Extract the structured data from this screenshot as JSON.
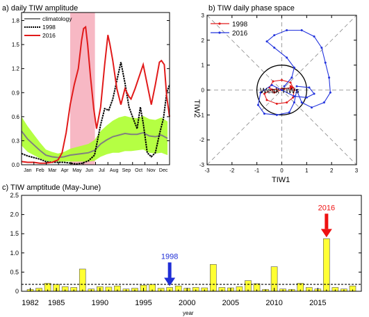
{
  "chart_data": [
    {
      "panel": "a",
      "type": "line",
      "title": "a) daily TIW amplitude",
      "x_tick_labels": [
        "Jan",
        "Feb",
        "Mar",
        "Apr",
        "May",
        "Jun",
        "Jul",
        "Aug",
        "Sep",
        "Oct",
        "Nov",
        "Dec"
      ],
      "y_tick_labels": [
        "0.0",
        "0.3",
        "0.6",
        "0.9",
        "1.2",
        "1.5",
        "1.8"
      ],
      "ylim": [
        0,
        1.9
      ],
      "xlim": [
        0,
        365
      ],
      "highlight_span": [
        120,
        181
      ],
      "legend_placement": "top-left",
      "series": [
        {
          "name": "climatology",
          "color": "#808080",
          "spread_color": "#adff2f",
          "x": [
            0,
            15,
            30,
            45,
            60,
            75,
            90,
            105,
            120,
            135,
            150,
            165,
            180,
            195,
            210,
            225,
            240,
            255,
            270,
            285,
            300,
            315,
            330,
            345,
            360
          ],
          "values": [
            0.42,
            0.32,
            0.25,
            0.18,
            0.12,
            0.1,
            0.09,
            0.1,
            0.12,
            0.13,
            0.14,
            0.15,
            0.18,
            0.26,
            0.31,
            0.35,
            0.37,
            0.39,
            0.38,
            0.38,
            0.4,
            0.36,
            0.35,
            0.37,
            0.33
          ],
          "spread": [
            0.18,
            0.16,
            0.13,
            0.1,
            0.07,
            0.06,
            0.05,
            0.06,
            0.08,
            0.09,
            0.1,
            0.11,
            0.13,
            0.16,
            0.18,
            0.2,
            0.22,
            0.22,
            0.21,
            0.2,
            0.21,
            0.21,
            0.21,
            0.22,
            0.21
          ]
        },
        {
          "name": "1998",
          "color": "#000000",
          "x": [
            0,
            15,
            30,
            45,
            60,
            75,
            90,
            105,
            120,
            135,
            150,
            165,
            180,
            195,
            205,
            215,
            225,
            235,
            245,
            255,
            265,
            275,
            285,
            293,
            300,
            310,
            320,
            330,
            340,
            350,
            358,
            365
          ],
          "values": [
            0.14,
            0.11,
            0.09,
            0.07,
            0.04,
            0.03,
            0.03,
            0.03,
            0.02,
            0.01,
            0.02,
            0.05,
            0.12,
            0.5,
            0.7,
            0.68,
            0.82,
            1.05,
            1.28,
            1.02,
            0.72,
            0.58,
            0.45,
            0.72,
            0.52,
            0.15,
            0.1,
            0.15,
            0.38,
            0.58,
            0.9,
            1.0
          ]
        },
        {
          "name": "2016",
          "color": "#e11a1a",
          "x": [
            0,
            15,
            30,
            45,
            60,
            75,
            90,
            100,
            110,
            120,
            130,
            140,
            148,
            153,
            158,
            163,
            170,
            178,
            185,
            195,
            205,
            213,
            218,
            225,
            235,
            245,
            255,
            265,
            270,
            280,
            290,
            300,
            310,
            320,
            330,
            340,
            345,
            352,
            358,
            365
          ],
          "values": [
            0.04,
            0.03,
            0.03,
            0.02,
            0.02,
            0.03,
            0.06,
            0.15,
            0.4,
            0.75,
            1.0,
            1.2,
            1.55,
            1.7,
            1.72,
            1.5,
            1.1,
            0.7,
            0.45,
            0.72,
            1.25,
            1.62,
            1.5,
            1.3,
            0.95,
            0.75,
            0.95,
            0.85,
            0.82,
            0.95,
            1.1,
            1.25,
            1.0,
            0.75,
            1.0,
            1.28,
            1.3,
            1.25,
            0.85,
            0.6
          ]
        }
      ]
    },
    {
      "panel": "b",
      "type": "line",
      "title": "b) TIW daily phase space",
      "xlabel": "TIW1",
      "ylabel": "TIW2",
      "x_tick_labels": [
        "-3",
        "-2",
        "-1",
        "0",
        "1",
        "2",
        "3"
      ],
      "y_tick_labels": [
        "-3",
        "-2",
        "-1",
        "0",
        "1",
        "2",
        "3"
      ],
      "xlim": [
        -3,
        3
      ],
      "ylim": [
        -3,
        3
      ],
      "annotation": "Weak TIWs",
      "unit_circle_radius": 1,
      "legend_placement": "top-left",
      "series": [
        {
          "name": "1998",
          "color": "#e11a1a",
          "points": [
            [
              0,
              0.05
            ],
            [
              -0.4,
              0.02
            ],
            [
              -0.7,
              -0.15
            ],
            [
              -0.6,
              -0.4
            ],
            [
              -0.2,
              -0.55
            ],
            [
              0.2,
              -0.5
            ],
            [
              0.45,
              -0.3
            ],
            [
              0.5,
              0.0
            ],
            [
              0.35,
              0.3
            ],
            [
              0.0,
              0.4
            ],
            [
              -0.35,
              0.35
            ],
            [
              -0.5,
              0.1
            ],
            [
              -0.3,
              -0.1
            ],
            [
              0.1,
              0.05
            ],
            [
              0.4,
              0.1
            ]
          ]
        },
        {
          "name": "2016",
          "color": "#2233dd",
          "points": [
            [
              0.1,
              0.15
            ],
            [
              0.4,
              0.5
            ],
            [
              0.5,
              0.9
            ],
            [
              0.2,
              1.3
            ],
            [
              -0.3,
              1.7
            ],
            [
              -0.6,
              1.95
            ],
            [
              -0.3,
              2.2
            ],
            [
              0.2,
              2.4
            ],
            [
              0.8,
              2.4
            ],
            [
              1.3,
              2.15
            ],
            [
              1.6,
              1.7
            ],
            [
              1.75,
              1.1
            ],
            [
              1.9,
              0.5
            ],
            [
              1.95,
              -0.1
            ],
            [
              1.7,
              -0.5
            ],
            [
              1.2,
              -0.7
            ],
            [
              0.8,
              -0.5
            ],
            [
              0.6,
              0.0
            ],
            [
              0.5,
              -0.5
            ],
            [
              0.3,
              -0.9
            ],
            [
              -0.2,
              -1.0
            ],
            [
              -0.7,
              -0.95
            ],
            [
              -0.95,
              -0.6
            ],
            [
              -0.85,
              -0.1
            ],
            [
              -0.4,
              0.2
            ],
            [
              0.0,
              0.0
            ],
            [
              0.5,
              -0.25
            ],
            [
              1.0,
              -0.3
            ],
            [
              1.3,
              -0.15
            ],
            [
              1.1,
              0.1
            ],
            [
              0.6,
              0.15
            ]
          ]
        }
      ]
    },
    {
      "panel": "c",
      "type": "bar",
      "title": "c) TIW amptitude (May-June)",
      "xlabel": "year",
      "x_tick_labels": [
        "1982",
        "1985",
        "1990",
        "1995",
        "2000",
        "2005",
        "2010",
        "2015"
      ],
      "y_tick_labels": [
        "0",
        "0.5",
        "1.0",
        "1.5",
        "2.0",
        "2.5"
      ],
      "ylim": [
        0,
        2.5
      ],
      "xlim": [
        1981,
        2020
      ],
      "bar_color": "#ffff33",
      "threshold": 0.18,
      "categories": [
        1982,
        1983,
        1984,
        1985,
        1986,
        1987,
        1988,
        1989,
        1990,
        1991,
        1992,
        1993,
        1994,
        1995,
        1996,
        1997,
        1998,
        1999,
        2000,
        2001,
        2002,
        2003,
        2004,
        2005,
        2006,
        2007,
        2008,
        2009,
        2010,
        2011,
        2012,
        2013,
        2014,
        2015,
        2016,
        2017,
        2018,
        2019
      ],
      "values": [
        0.05,
        0.08,
        0.21,
        0.18,
        0.12,
        0.1,
        0.58,
        0.06,
        0.12,
        0.11,
        0.14,
        0.06,
        0.08,
        0.16,
        0.18,
        0.08,
        0.1,
        0.14,
        0.08,
        0.1,
        0.09,
        0.7,
        0.1,
        0.09,
        0.12,
        0.28,
        0.2,
        0.05,
        0.64,
        0.06,
        0.05,
        0.21,
        0.1,
        0.06,
        1.37,
        0.1,
        0.06,
        0.14
      ],
      "annotations": [
        {
          "text": "1998",
          "year": 1998,
          "color": "#1f2ed6"
        },
        {
          "text": "2016",
          "year": 2016,
          "color": "#ee1111"
        }
      ]
    }
  ]
}
